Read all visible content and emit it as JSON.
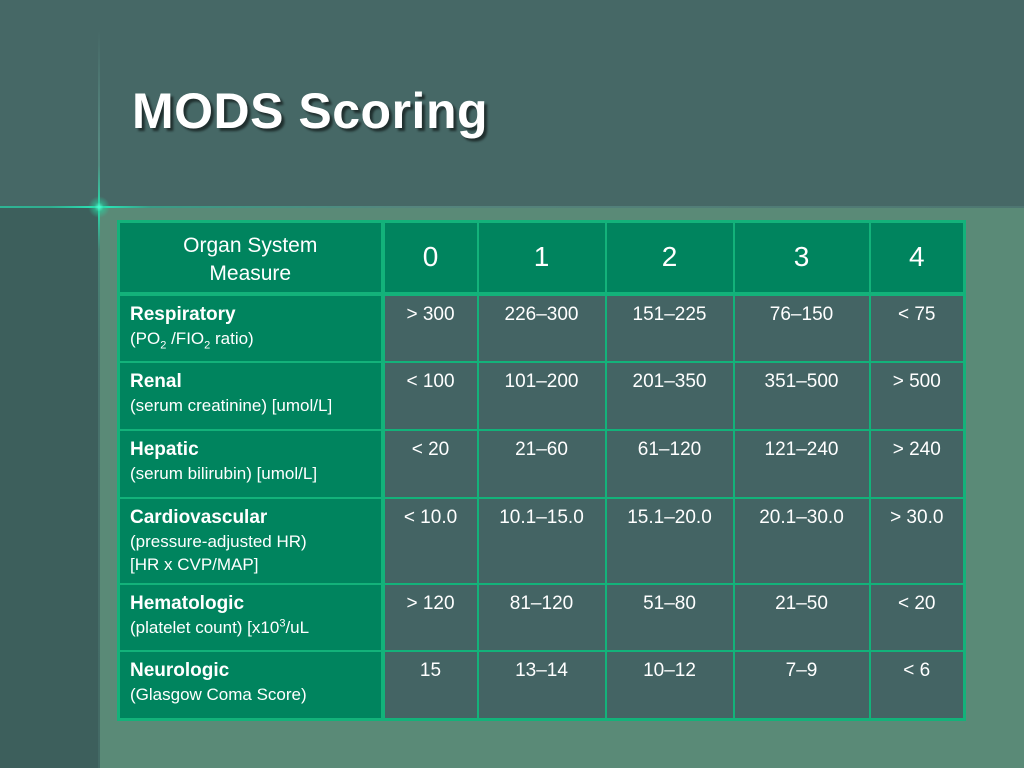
{
  "slide": {
    "title": "MODS Scoring"
  },
  "table": {
    "header": {
      "organ_line1": "Organ System",
      "organ_line2": "Measure",
      "scores": [
        "0",
        "1",
        "2",
        "3",
        "4"
      ]
    },
    "rows": [
      {
        "name": "Respiratory",
        "desc": [
          "(PO",
          "2",
          " /FIO",
          "2",
          " ratio)"
        ],
        "values": [
          "> 300",
          "226–300",
          "151–225",
          "76–150",
          "< 75"
        ]
      },
      {
        "name": "Renal",
        "desc": "(serum creatinine) [umol/L]",
        "values": [
          "< 100",
          "101–200",
          "201–350",
          "351–500",
          "> 500"
        ]
      },
      {
        "name": "Hepatic",
        "desc": "(serum bilirubin) [umol/L]",
        "values": [
          "< 20",
          "21–60",
          "61–120",
          "121–240",
          "> 240"
        ]
      },
      {
        "name": "Cardiovascular",
        "desc_line1": "(pressure-adjusted HR)",
        "desc_line2": "[HR x CVP/MAP]",
        "values": [
          "< 10.0",
          "10.1–15.0",
          "15.1–20.0",
          "20.1–30.0",
          "> 30.0"
        ]
      },
      {
        "name": "Hematologic",
        "desc": [
          "(platelet count) [x10",
          "3",
          "/uL"
        ],
        "values": [
          "> 120",
          "81–120",
          "51–80",
          "21–50",
          "< 20"
        ]
      },
      {
        "name": "Neurologic",
        "desc": "(Glasgow Coma Score)",
        "values": [
          "15",
          "13–14",
          "10–12",
          "7–9",
          "< 6"
        ]
      }
    ]
  },
  "colors": {
    "header_bg": "#00845e",
    "cell_bg": "#446464",
    "border": "#13b27a",
    "title_band": "#466866"
  }
}
